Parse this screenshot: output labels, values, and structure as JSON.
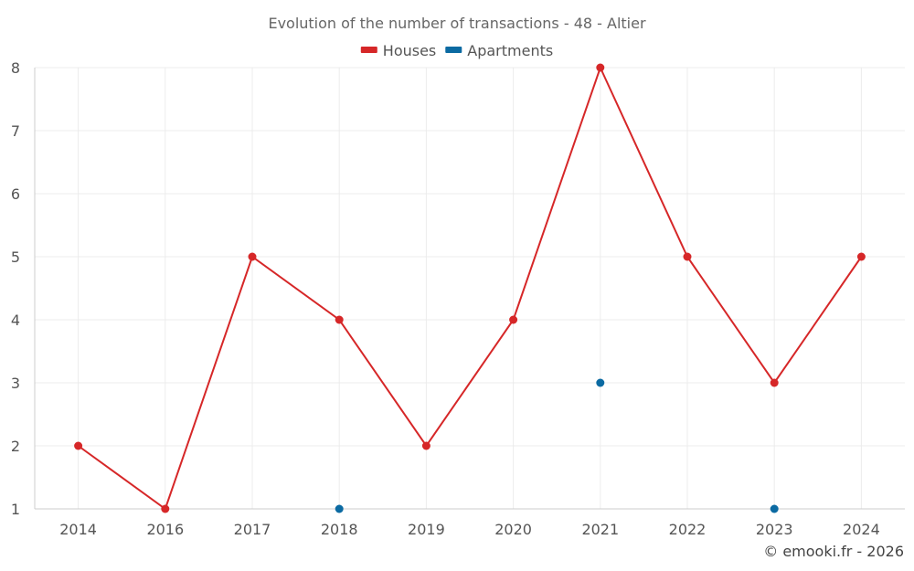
{
  "chart_data": {
    "type": "line",
    "title": "Evolution of the number of transactions - 48 - Altier",
    "categories": [
      "2014",
      "2016",
      "2017",
      "2018",
      "2019",
      "2020",
      "2021",
      "2022",
      "2023",
      "2024"
    ],
    "series": [
      {
        "name": "Houses",
        "color": "#d62728",
        "values": [
          2,
          1,
          5,
          4,
          2,
          4,
          8,
          5,
          3,
          5
        ],
        "connected": true
      },
      {
        "name": "Apartments",
        "color": "#0b6aa2",
        "values": [
          null,
          null,
          null,
          1,
          null,
          null,
          3,
          null,
          1,
          null
        ],
        "connected": false
      }
    ],
    "ylim": [
      1,
      8
    ],
    "yticks": [
      1,
      2,
      3,
      4,
      5,
      6,
      7,
      8
    ],
    "grid": true,
    "legend": "top-center",
    "xlabel": "",
    "ylabel": ""
  },
  "credit": "© emooki.fr - 2026"
}
